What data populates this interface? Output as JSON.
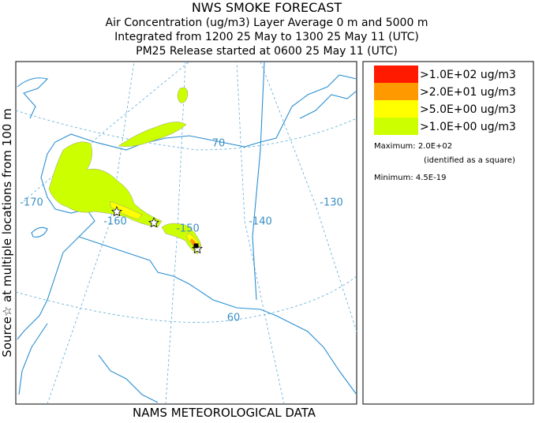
{
  "header": {
    "lines": [
      "NWS SMOKE FORECAST",
      "Air Concentration (ug/m3) Layer Average    0 m and  5000 m",
      "Integrated from 1200 25 May to 1300 25 May 11 (UTC)",
      "PM25 Release started at 0600 25 May 11 (UTC)"
    ]
  },
  "legend": {
    "entries": [
      {
        "label": ">1.0E+02 ug/m3",
        "color": "#ff1a00"
      },
      {
        "label": ">2.0E+01 ug/m3",
        "color": "#ff9900"
      },
      {
        "label": ">5.0E+00 ug/m3",
        "color": "#ffff00"
      },
      {
        "label": ">1.0E+00 ug/m3",
        "color": "#ccff00"
      }
    ],
    "maximum": "Maximum: 2.0E+02",
    "maximum_note": "(identified as a square)",
    "minimum": "Minimum: 4.5E-19"
  },
  "map": {
    "labels": [
      "-170",
      "-160",
      "-150",
      "-140",
      "-130",
      "70",
      "60"
    ]
  },
  "side_label": "Source☆  at multiple locations   from   100 m",
  "footer": "NAMS METEOROLOGICAL DATA"
}
